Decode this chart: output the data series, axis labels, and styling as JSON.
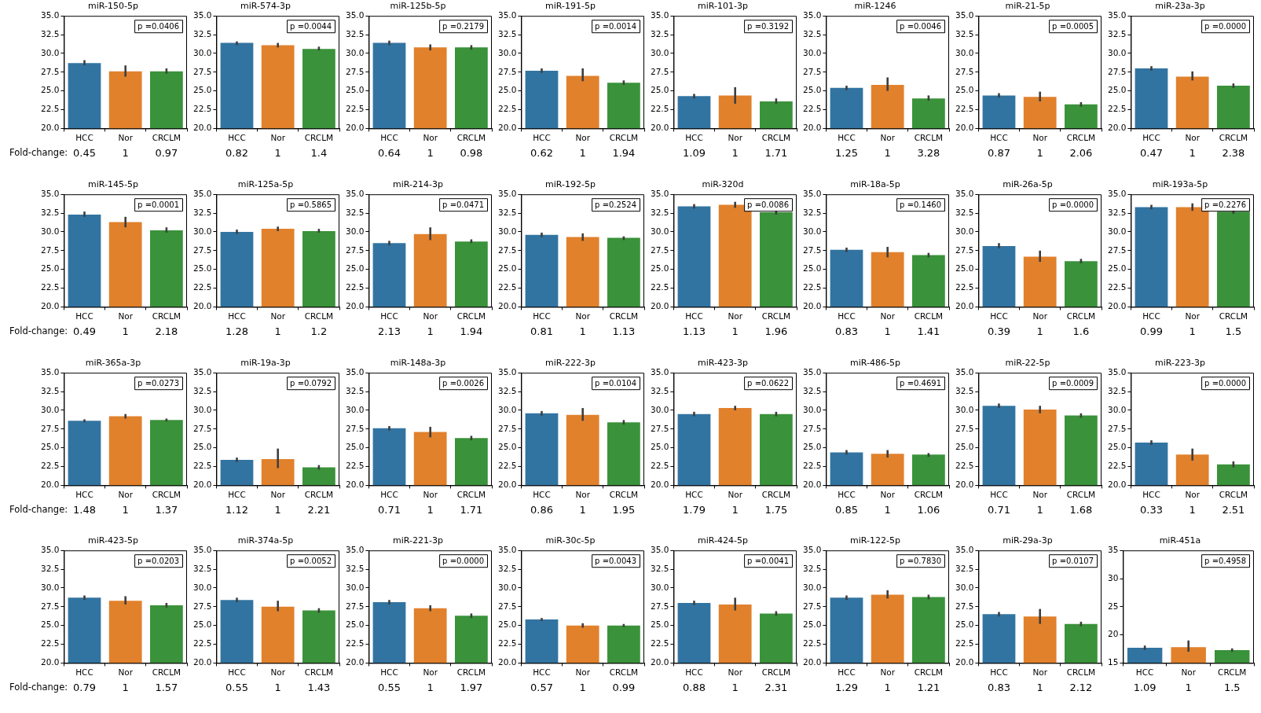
{
  "chart_data": [
    {
      "type": "bar",
      "title": "miR-150-5p",
      "categories": [
        "HCC",
        "Nor",
        "CRCLM"
      ],
      "colors": [
        "#3274a1",
        "#e1812c",
        "#3a923a"
      ],
      "values": [
        28.7,
        27.6,
        27.6
      ],
      "errors": [
        [
          28.4,
          29.1
        ],
        [
          26.9,
          28.4
        ],
        [
          27.3,
          28.0
        ]
      ],
      "ylim": [
        20,
        35
      ],
      "yticks": [
        {
          "value": 20,
          "label": "20.0"
        },
        22.5,
        {
          "value": 25,
          "label": "25.0"
        },
        27.5,
        {
          "value": 30,
          "label": "30.0"
        },
        32.5,
        {
          "value": 35,
          "label": "35.0"
        }
      ],
      "annotations": [
        "p =0.0406",
        "Fold-change:",
        "0.45",
        "1",
        "0.97"
      ],
      "grid": false
    },
    {
      "type": "bar",
      "title": "miR-574-3p",
      "categories": [
        "HCC",
        "Nor",
        "CRCLM"
      ],
      "colors": [
        "#3274a1",
        "#e1812c",
        "#3a923a"
      ],
      "values": [
        31.4,
        31.1,
        30.6
      ],
      "errors": [
        [
          31.1,
          31.6
        ],
        [
          30.8,
          31.4
        ],
        [
          30.4,
          30.9
        ]
      ],
      "ylim": [
        20,
        35
      ],
      "yticks": [
        {
          "value": 20,
          "label": "20.0"
        },
        22.5,
        {
          "value": 25,
          "label": "25.0"
        },
        27.5,
        {
          "value": 30,
          "label": "30.0"
        },
        32.5,
        {
          "value": 35,
          "label": "35.0"
        }
      ],
      "annotations": [
        "p =0.0044",
        "0.82",
        "1",
        "1.4"
      ],
      "grid": false
    },
    {
      "type": "bar",
      "title": "miR-125b-5p",
      "categories": [
        "HCC",
        "Nor",
        "CRCLM"
      ],
      "colors": [
        "#3274a1",
        "#e1812c",
        "#3a923a"
      ],
      "values": [
        31.4,
        30.8,
        30.8
      ],
      "errors": [
        [
          31.1,
          31.7
        ],
        [
          30.4,
          31.2
        ],
        [
          30.5,
          31.1
        ]
      ],
      "ylim": [
        20,
        35
      ],
      "yticks": [
        {
          "value": 20,
          "label": "20.0"
        },
        22.5,
        {
          "value": 25,
          "label": "25.0"
        },
        27.5,
        {
          "value": 30,
          "label": "30.0"
        },
        32.5,
        {
          "value": 35,
          "label": "35.0"
        }
      ],
      "annotations": [
        "p =0.2179",
        "0.64",
        "1",
        "0.98"
      ],
      "grid": false
    },
    {
      "type": "bar",
      "title": "miR-191-5p",
      "categories": [
        "HCC",
        "Nor",
        "CRCLM"
      ],
      "colors": [
        "#3274a1",
        "#e1812c",
        "#3a923a"
      ],
      "values": [
        27.7,
        27.0,
        26.1
      ],
      "errors": [
        [
          27.4,
          28.0
        ],
        [
          26.3,
          28.0
        ],
        [
          25.8,
          26.4
        ]
      ],
      "ylim": [
        20,
        35
      ],
      "yticks": [
        {
          "value": 20,
          "label": "20.0"
        },
        22.5,
        {
          "value": 25,
          "label": "25.0"
        },
        27.5,
        {
          "value": 30,
          "label": "30.0"
        },
        32.5,
        {
          "value": 35,
          "label": "35.0"
        }
      ],
      "annotations": [
        "p =0.0014",
        "0.62",
        "1",
        "1.94"
      ],
      "grid": false
    },
    {
      "type": "bar",
      "title": "miR-101-3p",
      "categories": [
        "HCC",
        "Nor",
        "CRCLM"
      ],
      "colors": [
        "#3274a1",
        "#e1812c",
        "#3a923a"
      ],
      "values": [
        24.3,
        24.4,
        23.6
      ],
      "errors": [
        [
          24.0,
          24.6
        ],
        [
          23.3,
          25.5
        ],
        [
          23.3,
          24.0
        ]
      ],
      "ylim": [
        20,
        35
      ],
      "yticks": [
        {
          "value": 20,
          "label": "20.0"
        },
        22.5,
        {
          "value": 25,
          "label": "25.0"
        },
        27.5,
        {
          "value": 30,
          "label": "30.0"
        },
        32.5,
        {
          "value": 35,
          "label": "35.0"
        }
      ],
      "annotations": [
        "p =0.3192",
        "1.09",
        "1",
        "1.71"
      ],
      "grid": false
    },
    {
      "type": "bar",
      "title": "miR-1246",
      "categories": [
        "HCC",
        "Nor",
        "CRCLM"
      ],
      "colors": [
        "#3274a1",
        "#e1812c",
        "#3a923a"
      ],
      "values": [
        25.4,
        25.8,
        24.0
      ],
      "errors": [
        [
          25.1,
          25.7
        ],
        [
          25.0,
          26.8
        ],
        [
          23.7,
          24.4
        ]
      ],
      "ylim": [
        20,
        35
      ],
      "yticks": [
        {
          "value": 20,
          "label": "20.0"
        },
        22.5,
        {
          "value": 25,
          "label": "25.0"
        },
        27.5,
        {
          "value": 30,
          "label": "30.0"
        },
        32.5,
        {
          "value": 35,
          "label": "35.0"
        }
      ],
      "annotations": [
        "p =0.0046",
        "1.25",
        "1",
        "3.28"
      ],
      "grid": false
    },
    {
      "type": "bar",
      "title": "miR-21-5p",
      "categories": [
        "HCC",
        "Nor",
        "CRCLM"
      ],
      "colors": [
        "#3274a1",
        "#e1812c",
        "#3a923a"
      ],
      "values": [
        24.4,
        24.2,
        23.2
      ],
      "errors": [
        [
          24.1,
          24.7
        ],
        [
          23.6,
          24.9
        ],
        [
          22.9,
          23.5
        ]
      ],
      "ylim": [
        20,
        35
      ],
      "yticks": [
        {
          "value": 20,
          "label": "20.0"
        },
        22.5,
        {
          "value": 25,
          "label": "25.0"
        },
        27.5,
        {
          "value": 30,
          "label": "30.0"
        },
        32.5,
        {
          "value": 35,
          "label": "35.0"
        }
      ],
      "annotations": [
        "p =0.0005",
        "0.87",
        "1",
        "2.06"
      ],
      "grid": false
    },
    {
      "type": "bar",
      "title": "miR-23a-3p",
      "categories": [
        "HCC",
        "Nor",
        "CRCLM"
      ],
      "colors": [
        "#3274a1",
        "#e1812c",
        "#3a923a"
      ],
      "values": [
        28.0,
        26.9,
        25.7
      ],
      "errors": [
        [
          27.7,
          28.3
        ],
        [
          26.4,
          27.6
        ],
        [
          25.4,
          26.0
        ]
      ],
      "ylim": [
        20,
        35
      ],
      "yticks": [
        {
          "value": 20,
          "label": "20.0"
        },
        22.5,
        {
          "value": 25,
          "label": "25.0"
        },
        27.5,
        {
          "value": 30,
          "label": "30.0"
        },
        32.5,
        {
          "value": 35,
          "label": "35.0"
        }
      ],
      "annotations": [
        "p =0.0000",
        "0.47",
        "1",
        "2.38"
      ],
      "grid": false
    },
    {
      "type": "bar",
      "title": "miR-145-5p",
      "categories": [
        "HCC",
        "Nor",
        "CRCLM"
      ],
      "colors": [
        "#3274a1",
        "#e1812c",
        "#3a923a"
      ],
      "values": [
        32.3,
        31.3,
        30.2
      ],
      "errors": [
        [
          32.0,
          32.7
        ],
        [
          30.6,
          32.0
        ],
        [
          29.9,
          30.6
        ]
      ],
      "ylim": [
        20,
        35
      ],
      "yticks": [
        {
          "value": 20,
          "label": "20.0"
        },
        22.5,
        {
          "value": 25,
          "label": "25.0"
        },
        27.5,
        {
          "value": 30,
          "label": "30.0"
        },
        32.5,
        {
          "value": 35,
          "label": "35.0"
        }
      ],
      "annotations": [
        "p =0.0001",
        "Fold-change:",
        "0.49",
        "1",
        "2.18"
      ],
      "grid": false
    },
    {
      "type": "bar",
      "title": "miR-125a-5p",
      "categories": [
        "HCC",
        "Nor",
        "CRCLM"
      ],
      "colors": [
        "#3274a1",
        "#e1812c",
        "#3a923a"
      ],
      "values": [
        30.0,
        30.4,
        30.1
      ],
      "errors": [
        [
          29.7,
          30.3
        ],
        [
          30.1,
          30.7
        ],
        [
          29.9,
          30.4
        ]
      ],
      "ylim": [
        20,
        35
      ],
      "yticks": [
        {
          "value": 20,
          "label": "20.0"
        },
        22.5,
        {
          "value": 25,
          "label": "25.0"
        },
        27.5,
        {
          "value": 30,
          "label": "30.0"
        },
        32.5,
        {
          "value": 35,
          "label": "35.0"
        }
      ],
      "annotations": [
        "p =0.5865",
        "1.28",
        "1",
        "1.2"
      ],
      "grid": false
    },
    {
      "type": "bar",
      "title": "miR-214-3p",
      "categories": [
        "HCC",
        "Nor",
        "CRCLM"
      ],
      "colors": [
        "#3274a1",
        "#e1812c",
        "#3a923a"
      ],
      "values": [
        28.5,
        29.7,
        28.7
      ],
      "errors": [
        [
          28.2,
          28.8
        ],
        [
          28.9,
          30.6
        ],
        [
          28.5,
          29.0
        ]
      ],
      "ylim": [
        20,
        35
      ],
      "yticks": [
        {
          "value": 20,
          "label": "20.0"
        },
        22.5,
        {
          "value": 25,
          "label": "25.0"
        },
        27.5,
        {
          "value": 30,
          "label": "30.0"
        },
        32.5,
        {
          "value": 35,
          "label": "35.0"
        }
      ],
      "annotations": [
        "p =0.0471",
        "2.13",
        "1",
        "1.94"
      ],
      "grid": false
    },
    {
      "type": "bar",
      "title": "miR-192-5p",
      "categories": [
        "HCC",
        "Nor",
        "CRCLM"
      ],
      "colors": [
        "#3274a1",
        "#e1812c",
        "#3a923a"
      ],
      "values": [
        29.6,
        29.3,
        29.2
      ],
      "errors": [
        [
          29.3,
          29.9
        ],
        [
          28.8,
          29.8
        ],
        [
          28.9,
          29.4
        ]
      ],
      "ylim": [
        20,
        35
      ],
      "yticks": [
        {
          "value": 20,
          "label": "20.0"
        },
        22.5,
        {
          "value": 25,
          "label": "25.0"
        },
        27.5,
        {
          "value": 30,
          "label": "30.0"
        },
        32.5,
        {
          "value": 35,
          "label": "35.0"
        }
      ],
      "annotations": [
        "p =0.2524",
        "0.81",
        "1",
        "1.13"
      ],
      "grid": false
    },
    {
      "type": "bar",
      "title": "miR-320d",
      "categories": [
        "HCC",
        "Nor",
        "CRCLM"
      ],
      "colors": [
        "#3274a1",
        "#e1812c",
        "#3a923a"
      ],
      "values": [
        33.4,
        33.6,
        32.6
      ],
      "errors": [
        [
          33.1,
          33.7
        ],
        [
          33.2,
          34.0
        ],
        [
          32.3,
          32.9
        ]
      ],
      "ylim": [
        20,
        35
      ],
      "yticks": [
        {
          "value": 20,
          "label": "20.0"
        },
        22.5,
        {
          "value": 25,
          "label": "25.0"
        },
        27.5,
        {
          "value": 30,
          "label": "30.0"
        },
        32.5,
        {
          "value": 35,
          "label": "35.0"
        }
      ],
      "annotations": [
        "p =0.0086",
        "1.13",
        "1",
        "1.96"
      ],
      "grid": false
    },
    {
      "type": "bar",
      "title": "miR-18a-5p",
      "categories": [
        "HCC",
        "Nor",
        "CRCLM"
      ],
      "colors": [
        "#3274a1",
        "#e1812c",
        "#3a923a"
      ],
      "values": [
        27.6,
        27.3,
        26.9
      ],
      "errors": [
        [
          27.3,
          27.9
        ],
        [
          26.6,
          28.0
        ],
        [
          26.6,
          27.2
        ]
      ],
      "ylim": [
        20,
        35
      ],
      "yticks": [
        {
          "value": 20,
          "label": "20.0"
        },
        22.5,
        {
          "value": 25,
          "label": "25.0"
        },
        27.5,
        {
          "value": 30,
          "label": "30.0"
        },
        32.5,
        {
          "value": 35,
          "label": "35.0"
        }
      ],
      "annotations": [
        "p =0.1460",
        "0.83",
        "1",
        "1.41"
      ],
      "grid": false
    },
    {
      "type": "bar",
      "title": "miR-26a-5p",
      "categories": [
        "HCC",
        "Nor",
        "CRCLM"
      ],
      "colors": [
        "#3274a1",
        "#e1812c",
        "#3a923a"
      ],
      "values": [
        28.1,
        26.7,
        26.1
      ],
      "errors": [
        [
          27.8,
          28.5
        ],
        [
          26.0,
          27.5
        ],
        [
          25.8,
          26.4
        ]
      ],
      "ylim": [
        20,
        35
      ],
      "yticks": [
        {
          "value": 20,
          "label": "20.0"
        },
        22.5,
        {
          "value": 25,
          "label": "25.0"
        },
        27.5,
        {
          "value": 30,
          "label": "30.0"
        },
        32.5,
        {
          "value": 35,
          "label": "35.0"
        }
      ],
      "annotations": [
        "p =0.0000",
        "0.39",
        "1",
        "1.6"
      ],
      "grid": false
    },
    {
      "type": "bar",
      "title": "miR-193a-5p",
      "categories": [
        "HCC",
        "Nor",
        "CRCLM"
      ],
      "colors": [
        "#3274a1",
        "#e1812c",
        "#3a923a"
      ],
      "values": [
        33.3,
        33.3,
        32.7
      ],
      "errors": [
        [
          33.0,
          33.6
        ],
        [
          32.8,
          33.8
        ],
        [
          32.4,
          33.0
        ]
      ],
      "ylim": [
        20,
        35
      ],
      "yticks": [
        {
          "value": 20,
          "label": "20.0"
        },
        22.5,
        {
          "value": 25,
          "label": "25.0"
        },
        27.5,
        {
          "value": 30,
          "label": "30.0"
        },
        32.5,
        {
          "value": 35,
          "label": "35.0"
        }
      ],
      "annotations": [
        "p =0.2276",
        "0.99",
        "1",
        "1.5"
      ],
      "grid": false
    },
    {
      "type": "bar",
      "title": "miR-365a-3p",
      "categories": [
        "HCC",
        "Nor",
        "CRCLM"
      ],
      "colors": [
        "#3274a1",
        "#e1812c",
        "#3a923a"
      ],
      "values": [
        28.6,
        29.2,
        28.7
      ],
      "errors": [
        [
          28.4,
          28.8
        ],
        [
          28.9,
          29.5
        ],
        [
          28.5,
          28.9
        ]
      ],
      "ylim": [
        20,
        35
      ],
      "yticks": [
        {
          "value": 20,
          "label": "20.0"
        },
        22.5,
        {
          "value": 25,
          "label": "25.0"
        },
        27.5,
        {
          "value": 30,
          "label": "30.0"
        },
        32.5,
        {
          "value": 35,
          "label": "35.0"
        }
      ],
      "annotations": [
        "p =0.0273",
        "Fold-change:",
        "1.48",
        "1",
        "1.37"
      ],
      "grid": false
    },
    {
      "type": "bar",
      "title": "miR-19a-3p",
      "categories": [
        "HCC",
        "Nor",
        "CRCLM"
      ],
      "colors": [
        "#3274a1",
        "#e1812c",
        "#3a923a"
      ],
      "values": [
        23.4,
        23.5,
        22.4
      ],
      "errors": [
        [
          23.1,
          23.7
        ],
        [
          22.3,
          24.9
        ],
        [
          22.1,
          22.7
        ]
      ],
      "ylim": [
        20,
        35
      ],
      "yticks": [
        {
          "value": 20,
          "label": "20.0"
        },
        22.5,
        {
          "value": 25,
          "label": "25.0"
        },
        27.5,
        {
          "value": 30,
          "label": "30.0"
        },
        32.5,
        {
          "value": 35,
          "label": "35.0"
        }
      ],
      "annotations": [
        "p =0.0792",
        "1.12",
        "1",
        "2.21"
      ],
      "grid": false
    },
    {
      "type": "bar",
      "title": "miR-148a-3p",
      "categories": [
        "HCC",
        "Nor",
        "CRCLM"
      ],
      "colors": [
        "#3274a1",
        "#e1812c",
        "#3a923a"
      ],
      "values": [
        27.6,
        27.1,
        26.3
      ],
      "errors": [
        [
          27.3,
          27.9
        ],
        [
          26.4,
          27.8
        ],
        [
          26.0,
          26.6
        ]
      ],
      "ylim": [
        20,
        35
      ],
      "yticks": [
        {
          "value": 20,
          "label": "20.0"
        },
        22.5,
        {
          "value": 25,
          "label": "25.0"
        },
        27.5,
        {
          "value": 30,
          "label": "30.0"
        },
        32.5,
        {
          "value": 35,
          "label": "35.0"
        }
      ],
      "annotations": [
        "p =0.0026",
        "0.71",
        "1",
        "1.71"
      ],
      "grid": false
    },
    {
      "type": "bar",
      "title": "miR-222-3p",
      "categories": [
        "HCC",
        "Nor",
        "CRCLM"
      ],
      "colors": [
        "#3274a1",
        "#e1812c",
        "#3a923a"
      ],
      "values": [
        29.6,
        29.4,
        28.4
      ],
      "errors": [
        [
          29.3,
          29.9
        ],
        [
          28.6,
          30.3
        ],
        [
          28.1,
          28.7
        ]
      ],
      "ylim": [
        20,
        35
      ],
      "yticks": [
        {
          "value": 20,
          "label": "20.0"
        },
        22.5,
        {
          "value": 25,
          "label": "25.0"
        },
        27.5,
        {
          "value": 30,
          "label": "30.0"
        },
        32.5,
        {
          "value": 35,
          "label": "35.0"
        }
      ],
      "annotations": [
        "p =0.0104",
        "0.86",
        "1",
        "1.95"
      ],
      "grid": false
    },
    {
      "type": "bar",
      "title": "miR-423-3p",
      "categories": [
        "HCC",
        "Nor",
        "CRCLM"
      ],
      "colors": [
        "#3274a1",
        "#e1812c",
        "#3a923a"
      ],
      "values": [
        29.5,
        30.3,
        29.5
      ],
      "errors": [
        [
          29.2,
          29.8
        ],
        [
          30.0,
          30.6
        ],
        [
          29.2,
          29.8
        ]
      ],
      "ylim": [
        20,
        35
      ],
      "yticks": [
        {
          "value": 20,
          "label": "20.0"
        },
        22.5,
        {
          "value": 25,
          "label": "25.0"
        },
        27.5,
        {
          "value": 30,
          "label": "30.0"
        },
        32.5,
        {
          "value": 35,
          "label": "35.0"
        }
      ],
      "annotations": [
        "p =0.0622",
        "1.79",
        "1",
        "1.75"
      ],
      "grid": false
    },
    {
      "type": "bar",
      "title": "miR-486-5p",
      "categories": [
        "HCC",
        "Nor",
        "CRCLM"
      ],
      "colors": [
        "#3274a1",
        "#e1812c",
        "#3a923a"
      ],
      "values": [
        24.4,
        24.2,
        24.1
      ],
      "errors": [
        [
          24.1,
          24.7
        ],
        [
          23.7,
          24.7
        ],
        [
          23.8,
          24.3
        ]
      ],
      "ylim": [
        20,
        35
      ],
      "yticks": [
        {
          "value": 20,
          "label": "20.0"
        },
        22.5,
        {
          "value": 25,
          "label": "25.0"
        },
        27.5,
        {
          "value": 30,
          "label": "30.0"
        },
        32.5,
        {
          "value": 35,
          "label": "35.0"
        }
      ],
      "annotations": [
        "p =0.4691",
        "0.85",
        "1",
        "1.06"
      ],
      "grid": false
    },
    {
      "type": "bar",
      "title": "miR-22-5p",
      "categories": [
        "HCC",
        "Nor",
        "CRCLM"
      ],
      "colors": [
        "#3274a1",
        "#e1812c",
        "#3a923a"
      ],
      "values": [
        30.6,
        30.1,
        29.3
      ],
      "errors": [
        [
          30.3,
          30.9
        ],
        [
          29.6,
          30.6
        ],
        [
          29.0,
          29.6
        ]
      ],
      "ylim": [
        20,
        35
      ],
      "yticks": [
        {
          "value": 20,
          "label": "20.0"
        },
        22.5,
        {
          "value": 25,
          "label": "25.0"
        },
        27.5,
        {
          "value": 30,
          "label": "30.0"
        },
        32.5,
        {
          "value": 35,
          "label": "35.0"
        }
      ],
      "annotations": [
        "p =0.0009",
        "0.71",
        "1",
        "1.68"
      ],
      "grid": false
    },
    {
      "type": "bar",
      "title": "miR-223-3p",
      "categories": [
        "HCC",
        "Nor",
        "CRCLM"
      ],
      "colors": [
        "#3274a1",
        "#e1812c",
        "#3a923a"
      ],
      "values": [
        25.7,
        24.1,
        22.8
      ],
      "errors": [
        [
          25.4,
          26.0
        ],
        [
          23.3,
          24.9
        ],
        [
          22.4,
          23.2
        ]
      ],
      "ylim": [
        20,
        35
      ],
      "yticks": [
        {
          "value": 20,
          "label": "20.0"
        },
        22.5,
        {
          "value": 25,
          "label": "25.0"
        },
        27.5,
        {
          "value": 30,
          "label": "30.0"
        },
        32.5,
        {
          "value": 35,
          "label": "35.0"
        }
      ],
      "annotations": [
        "p =0.0000",
        "0.33",
        "1",
        "2.51"
      ],
      "grid": false
    },
    {
      "type": "bar",
      "title": "miR-423-5p",
      "categories": [
        "HCC",
        "Nor",
        "CRCLM"
      ],
      "colors": [
        "#3274a1",
        "#e1812c",
        "#3a923a"
      ],
      "values": [
        28.7,
        28.3,
        27.7
      ],
      "errors": [
        [
          28.4,
          29.0
        ],
        [
          27.8,
          28.9
        ],
        [
          27.4,
          28.0
        ]
      ],
      "ylim": [
        20,
        35
      ],
      "yticks": [
        {
          "value": 20,
          "label": "20.0"
        },
        22.5,
        {
          "value": 25,
          "label": "25.0"
        },
        27.5,
        {
          "value": 30,
          "label": "30.0"
        },
        32.5,
        {
          "value": 35,
          "label": "35.0"
        }
      ],
      "annotations": [
        "p =0.0203",
        "Fold-change:",
        "0.79",
        "1",
        "1.57"
      ],
      "grid": false
    },
    {
      "type": "bar",
      "title": "miR-374a-5p",
      "categories": [
        "HCC",
        "Nor",
        "CRCLM"
      ],
      "colors": [
        "#3274a1",
        "#e1812c",
        "#3a923a"
      ],
      "values": [
        28.4,
        27.5,
        27.0
      ],
      "errors": [
        [
          28.1,
          28.7
        ],
        [
          26.9,
          28.3
        ],
        [
          26.7,
          27.3
        ]
      ],
      "ylim": [
        20,
        35
      ],
      "yticks": [
        {
          "value": 20,
          "label": "20.0"
        },
        22.5,
        {
          "value": 25,
          "label": "25.0"
        },
        27.5,
        {
          "value": 30,
          "label": "30.0"
        },
        32.5,
        {
          "value": 35,
          "label": "35.0"
        }
      ],
      "annotations": [
        "p =0.0052",
        "0.55",
        "1",
        "1.43"
      ],
      "grid": false
    },
    {
      "type": "bar",
      "title": "miR-221-3p",
      "categories": [
        "HCC",
        "Nor",
        "CRCLM"
      ],
      "colors": [
        "#3274a1",
        "#e1812c",
        "#3a923a"
      ],
      "values": [
        28.1,
        27.3,
        26.3
      ],
      "errors": [
        [
          27.8,
          28.4
        ],
        [
          26.9,
          27.7
        ],
        [
          26.0,
          26.6
        ]
      ],
      "ylim": [
        20,
        35
      ],
      "yticks": [
        {
          "value": 20,
          "label": "20.0"
        },
        22.5,
        {
          "value": 25,
          "label": "25.0"
        },
        27.5,
        {
          "value": 30,
          "label": "30.0"
        },
        32.5,
        {
          "value": 35,
          "label": "35.0"
        }
      ],
      "annotations": [
        "p =0.0000",
        "0.55",
        "1",
        "1.97"
      ],
      "grid": false
    },
    {
      "type": "bar",
      "title": "miR-30c-5p",
      "categories": [
        "HCC",
        "Nor",
        "CRCLM"
      ],
      "colors": [
        "#3274a1",
        "#e1812c",
        "#3a923a"
      ],
      "values": [
        25.8,
        25.0,
        25.0
      ],
      "errors": [
        [
          25.6,
          26.0
        ],
        [
          24.7,
          25.3
        ],
        [
          24.8,
          25.2
        ]
      ],
      "ylim": [
        20,
        35
      ],
      "yticks": [
        {
          "value": 20,
          "label": "20.0"
        },
        22.5,
        {
          "value": 25,
          "label": "25.0"
        },
        27.5,
        {
          "value": 30,
          "label": "30.0"
        },
        32.5,
        {
          "value": 35,
          "label": "35.0"
        }
      ],
      "annotations": [
        "p =0.0043",
        "0.57",
        "1",
        "0.99"
      ],
      "grid": false
    },
    {
      "type": "bar",
      "title": "miR-424-5p",
      "categories": [
        "HCC",
        "Nor",
        "CRCLM"
      ],
      "colors": [
        "#3274a1",
        "#e1812c",
        "#3a923a"
      ],
      "values": [
        28.0,
        27.8,
        26.6
      ],
      "errors": [
        [
          27.7,
          28.3
        ],
        [
          27.0,
          28.7
        ],
        [
          26.3,
          26.9
        ]
      ],
      "ylim": [
        20,
        35
      ],
      "yticks": [
        {
          "value": 20,
          "label": "20.0"
        },
        22.5,
        {
          "value": 25,
          "label": "25.0"
        },
        27.5,
        {
          "value": 30,
          "label": "30.0"
        },
        32.5,
        {
          "value": 35,
          "label": "35.0"
        }
      ],
      "annotations": [
        "p =0.0041",
        "0.88",
        "1",
        "2.31"
      ],
      "grid": false
    },
    {
      "type": "bar",
      "title": "miR-122-5p",
      "categories": [
        "HCC",
        "Nor",
        "CRCLM"
      ],
      "colors": [
        "#3274a1",
        "#e1812c",
        "#3a923a"
      ],
      "values": [
        28.7,
        29.1,
        28.8
      ],
      "errors": [
        [
          28.4,
          29.0
        ],
        [
          28.6,
          29.7
        ],
        [
          28.5,
          29.1
        ]
      ],
      "ylim": [
        20,
        35
      ],
      "yticks": [
        {
          "value": 20,
          "label": "20.0"
        },
        22.5,
        {
          "value": 25,
          "label": "25.0"
        },
        27.5,
        {
          "value": 30,
          "label": "30.0"
        },
        32.5,
        {
          "value": 35,
          "label": "35.0"
        }
      ],
      "annotations": [
        "p =0.7830",
        "1.29",
        "1",
        "1.21"
      ],
      "grid": false
    },
    {
      "type": "bar",
      "title": "miR-29a-3p",
      "categories": [
        "HCC",
        "Nor",
        "CRCLM"
      ],
      "colors": [
        "#3274a1",
        "#e1812c",
        "#3a923a"
      ],
      "values": [
        26.5,
        26.2,
        25.2
      ],
      "errors": [
        [
          26.2,
          26.8
        ],
        [
          25.2,
          27.2
        ],
        [
          24.9,
          25.5
        ]
      ],
      "ylim": [
        20,
        35
      ],
      "yticks": [
        {
          "value": 20,
          "label": "20.0"
        },
        22.5,
        {
          "value": 25,
          "label": "25.0"
        },
        27.5,
        {
          "value": 30,
          "label": "30.0"
        },
        32.5,
        {
          "value": 35,
          "label": "35.0"
        }
      ],
      "annotations": [
        "p =0.0107",
        "0.83",
        "1",
        "2.12"
      ],
      "grid": false
    },
    {
      "type": "bar",
      "title": "miR-451a",
      "categories": [
        "HCC",
        "Nor",
        "CRCLM"
      ],
      "colors": [
        "#3274a1",
        "#e1812c",
        "#3a923a"
      ],
      "values": [
        17.7,
        17.8,
        17.3
      ],
      "errors": [
        [
          17.3,
          18.1
        ],
        [
          17.0,
          19.0
        ],
        [
          17.0,
          17.6
        ]
      ],
      "ylim": [
        15,
        35
      ],
      "yticks": [
        15,
        20,
        25,
        30,
        35
      ],
      "annotations": [
        "p =0.4958",
        "1.09",
        "1",
        "1.5"
      ],
      "grid": false
    }
  ]
}
